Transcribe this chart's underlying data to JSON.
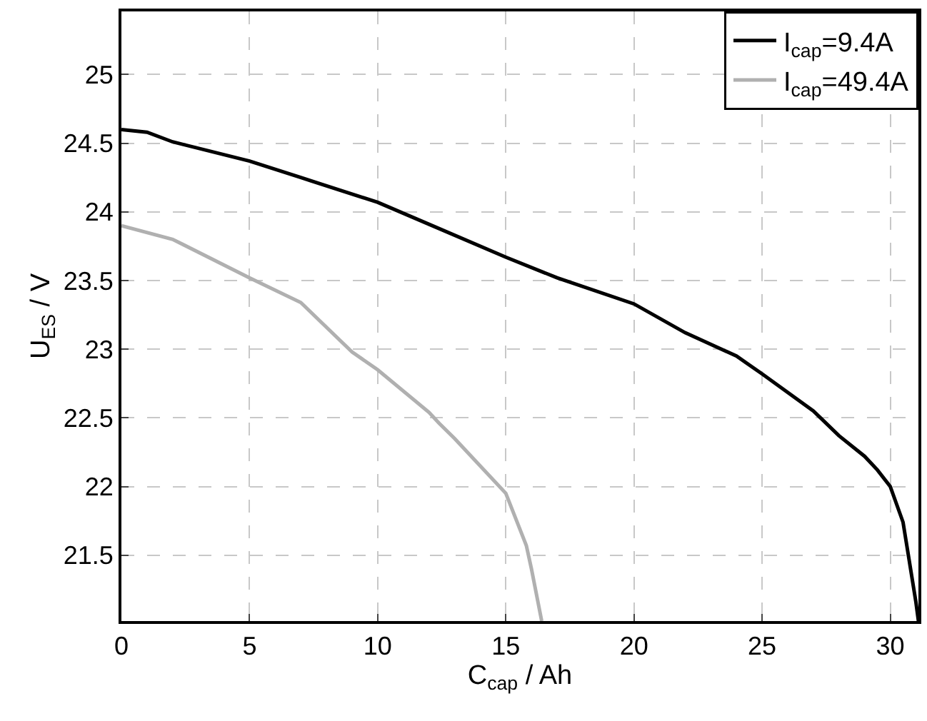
{
  "chart_data": {
    "type": "line",
    "xlabel": "C$_{cap}$ / Ah",
    "ylabel": "U$_{ES}$ / V",
    "xlim": [
      0,
      31.1
    ],
    "ylim": [
      21.02,
      25.46
    ],
    "xticks": [
      0,
      5,
      10,
      15,
      20,
      25,
      30
    ],
    "yticks": [
      21.5,
      22,
      22.5,
      23,
      23.5,
      24,
      24.5,
      25
    ],
    "grid": true,
    "legend": "top right",
    "line_style": "solid",
    "marker": "none",
    "series": [
      {
        "name": "I$_{cap}$=9.4A",
        "color": "#000000",
        "x": [
          0,
          1,
          2,
          5,
          7,
          10,
          12,
          15,
          17,
          20,
          22,
          24,
          25,
          27,
          28,
          29,
          29.5,
          30,
          30.5,
          31,
          31.1
        ],
        "values": [
          24.6,
          24.58,
          24.51,
          24.37,
          24.25,
          24.07,
          23.91,
          23.67,
          23.52,
          23.33,
          23.12,
          22.95,
          22.82,
          22.55,
          22.37,
          22.22,
          22.12,
          22.0,
          21.74,
          21.16,
          21.02
        ]
      },
      {
        "name": "I$_{cap}$=49.4A",
        "color": "#b0b0b0",
        "x": [
          0,
          2,
          5,
          7,
          9,
          10,
          12,
          12.4,
          13,
          15,
          15.8,
          16,
          16.4
        ],
        "values": [
          23.9,
          23.8,
          23.52,
          23.34,
          22.98,
          22.85,
          22.54,
          22.46,
          22.35,
          21.95,
          21.57,
          21.4,
          21.02
        ]
      }
    ]
  }
}
